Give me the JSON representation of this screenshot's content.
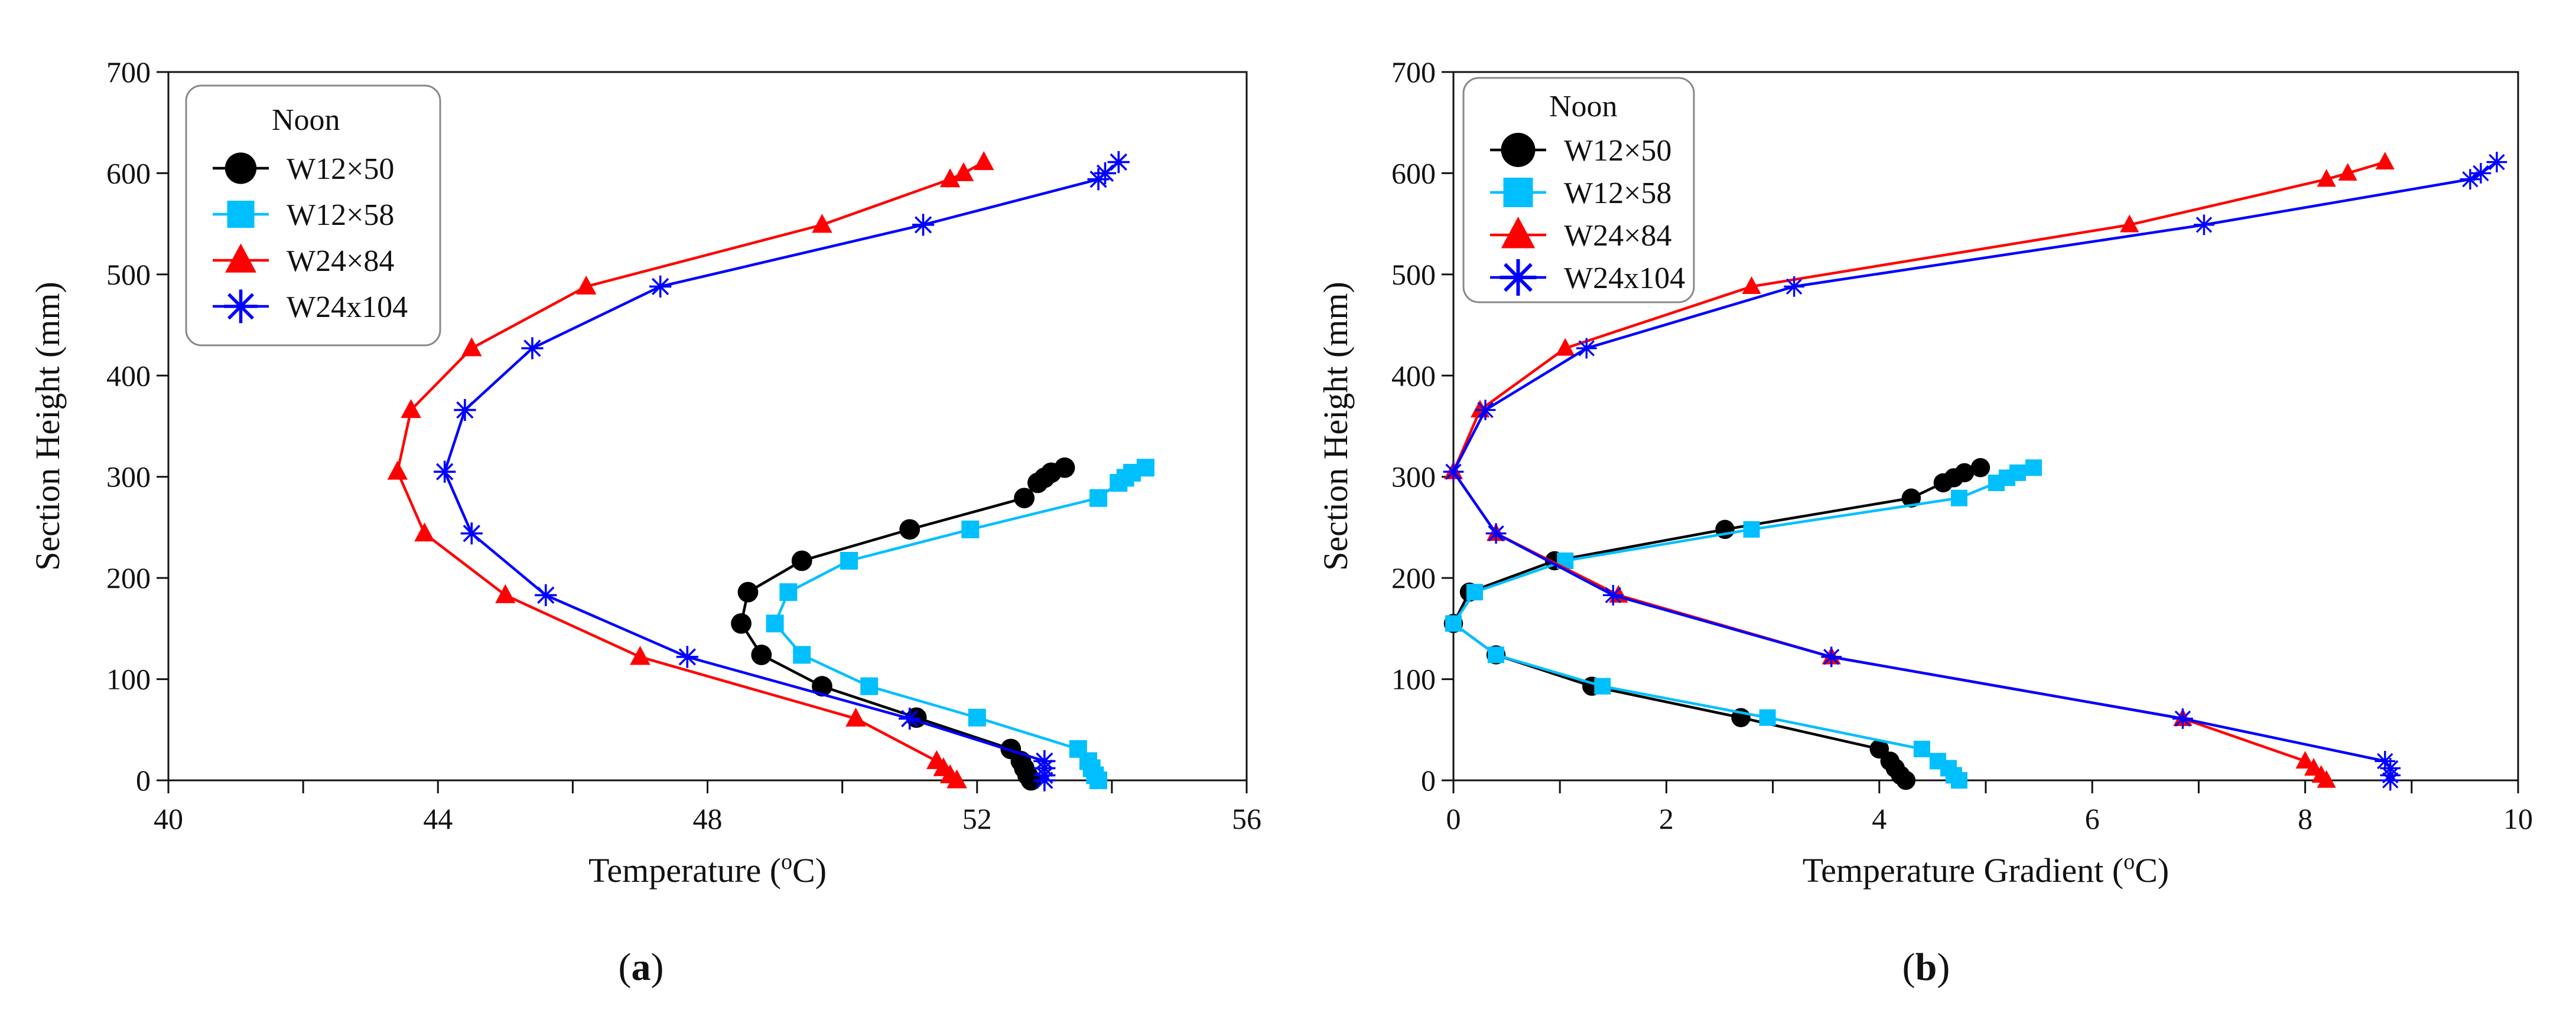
{
  "figure": {
    "panels_caption": [
      {
        "open": "(",
        "letter": "a",
        "close": ")"
      },
      {
        "open": "(",
        "letter": "b",
        "close": ")"
      }
    ]
  },
  "chart_data": [
    {
      "type": "line",
      "panel": "a",
      "xlabel": {
        "main": "Temperature (",
        "sup": "o",
        "tail": "C)"
      },
      "ylabel": "Section Height (mm)",
      "xlim": [
        40,
        56
      ],
      "ylim": [
        0,
        700
      ],
      "xticks_major": [
        "40",
        "44",
        "48",
        "52",
        "56"
      ],
      "xticks_minor": [
        42,
        46,
        50,
        54
      ],
      "yticks": [
        "0",
        "100",
        "200",
        "300",
        "400",
        "500",
        "600",
        "700"
      ],
      "legend": {
        "title": "Noon",
        "position": "top-left"
      },
      "series": [
        {
          "name": "W12×50",
          "color": "#000000",
          "marker": "circle",
          "x": [
            52.8,
            52.75,
            52.7,
            52.65,
            52.5,
            51.1,
            49.7,
            48.8,
            48.5,
            48.6,
            49.4,
            51.0,
            52.7,
            52.9,
            53.0,
            53.1,
            53.3
          ],
          "y": [
            0,
            5,
            12,
            19,
            31,
            62,
            93,
            124,
            155,
            186,
            217,
            248,
            279,
            294,
            299,
            304,
            309
          ]
        },
        {
          "name": "W12×58",
          "color": "#00bfff",
          "marker": "square",
          "x": [
            53.8,
            53.75,
            53.7,
            53.65,
            53.5,
            52.0,
            50.4,
            49.4,
            49.0,
            49.2,
            50.1,
            51.9,
            53.8,
            54.1,
            54.2,
            54.3,
            54.5
          ],
          "y": [
            0,
            5,
            12,
            19,
            31,
            62,
            93,
            124,
            155,
            186,
            217,
            248,
            279,
            294,
            299,
            304,
            309
          ]
        },
        {
          "name": "W24×84",
          "color": "#ff0000",
          "marker": "triangle",
          "x": [
            51.7,
            51.6,
            51.5,
            51.4,
            50.2,
            47.0,
            45.0,
            43.8,
            43.4,
            43.6,
            44.5,
            46.2,
            49.7,
            51.6,
            51.8,
            52.1
          ],
          "y": [
            0,
            5,
            12,
            19,
            61,
            122,
            183,
            244,
            305,
            366,
            427,
            488,
            549,
            594,
            600,
            611
          ]
        },
        {
          "name": "W24x104",
          "color": "#0000ff",
          "marker": "asterisk",
          "x": [
            53.0,
            53.0,
            53.0,
            53.0,
            51.0,
            47.7,
            45.6,
            44.5,
            44.1,
            44.4,
            45.4,
            47.3,
            51.2,
            53.8,
            53.9,
            54.1
          ],
          "y": [
            0,
            5,
            12,
            19,
            61,
            122,
            183,
            244,
            305,
            366,
            427,
            488,
            549,
            594,
            600,
            611
          ]
        }
      ]
    },
    {
      "type": "line",
      "panel": "b",
      "xlabel": {
        "main": "Temperature Gradient (",
        "sup": "o",
        "tail": "C)"
      },
      "ylabel": "Section Height (mm)",
      "xlim": [
        0,
        10
      ],
      "ylim": [
        0,
        700
      ],
      "xticks_major": [
        "0",
        "2",
        "4",
        "6",
        "8",
        "10"
      ],
      "xticks_minor": [
        1,
        3,
        5,
        7,
        9
      ],
      "yticks": [
        "0",
        "100",
        "200",
        "300",
        "400",
        "500",
        "600",
        "700"
      ],
      "legend": {
        "title": "Noon",
        "position": "top-left"
      },
      "series": [
        {
          "name": "W12×50",
          "color": "#000000",
          "marker": "circle",
          "x": [
            4.25,
            4.2,
            4.15,
            4.1,
            4.0,
            2.7,
            1.3,
            0.4,
            0.0,
            0.15,
            0.95,
            2.55,
            4.3,
            4.6,
            4.7,
            4.8,
            4.95
          ],
          "y": [
            0,
            5,
            12,
            19,
            31,
            62,
            93,
            124,
            155,
            186,
            217,
            248,
            279,
            294,
            299,
            304,
            309
          ]
        },
        {
          "name": "W12×58",
          "color": "#00bfff",
          "marker": "square",
          "x": [
            4.75,
            4.7,
            4.65,
            4.55,
            4.4,
            2.95,
            1.4,
            0.4,
            0.0,
            0.2,
            1.05,
            2.8,
            4.75,
            5.1,
            5.2,
            5.3,
            5.45
          ],
          "y": [
            0,
            5,
            12,
            19,
            31,
            62,
            93,
            124,
            155,
            186,
            217,
            248,
            279,
            294,
            299,
            304,
            309
          ]
        },
        {
          "name": "W24×84",
          "color": "#ff0000",
          "marker": "triangle",
          "x": [
            8.2,
            8.15,
            8.08,
            8.0,
            6.85,
            3.55,
            1.55,
            0.4,
            0.0,
            0.25,
            1.05,
            2.8,
            6.35,
            8.2,
            8.4,
            8.75
          ],
          "y": [
            0,
            5,
            12,
            19,
            61,
            122,
            183,
            244,
            305,
            366,
            427,
            488,
            549,
            594,
            600,
            611
          ]
        },
        {
          "name": "W24x104",
          "color": "#0000ff",
          "marker": "asterisk",
          "x": [
            8.8,
            8.8,
            8.8,
            8.75,
            6.85,
            3.55,
            1.5,
            0.4,
            0.0,
            0.3,
            1.25,
            3.2,
            7.05,
            9.55,
            9.65,
            9.8
          ],
          "y": [
            0,
            5,
            12,
            19,
            61,
            122,
            183,
            244,
            305,
            366,
            427,
            488,
            549,
            594,
            600,
            611
          ]
        }
      ]
    }
  ]
}
